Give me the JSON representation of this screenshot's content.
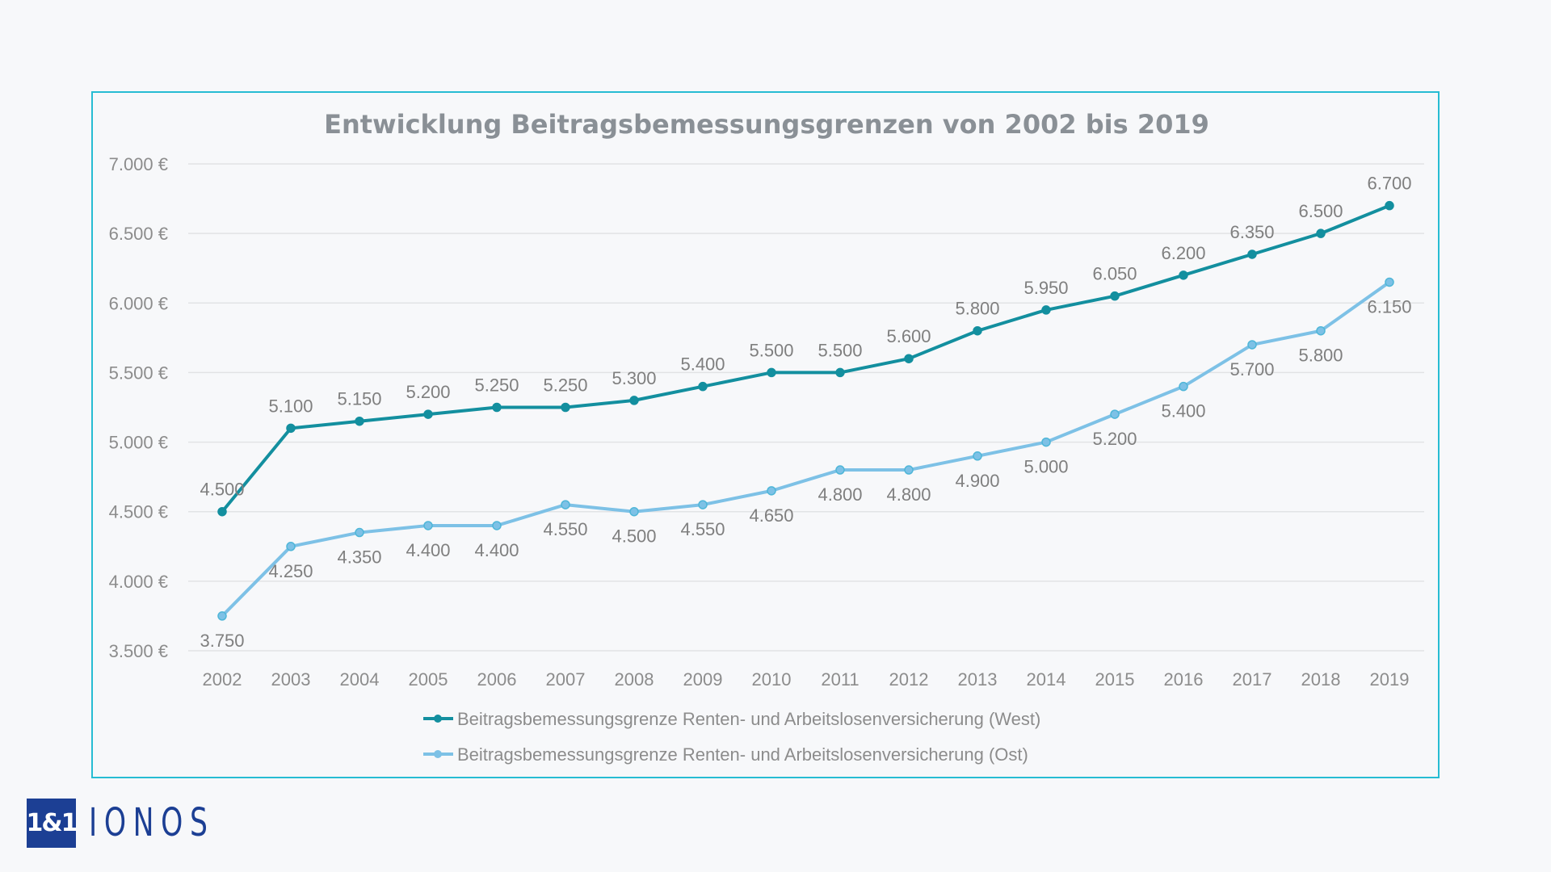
{
  "chart_data": {
    "type": "line",
    "title": "Entwicklung Beitragsbemessungsgrenzen von 2002 bis 2019",
    "x": [
      "2002",
      "2003",
      "2004",
      "2005",
      "2006",
      "2007",
      "2008",
      "2009",
      "2010",
      "2011",
      "2012",
      "2013",
      "2014",
      "2015",
      "2016",
      "2017",
      "2018",
      "2019"
    ],
    "ylim": [
      3500,
      7000
    ],
    "yticks": [
      3500,
      4000,
      4500,
      5000,
      5500,
      6000,
      6500,
      7000
    ],
    "ytick_labels": [
      "3.500 €",
      "4.000 €",
      "4.500 €",
      "5.000 €",
      "5.500 €",
      "6.000 €",
      "6.500 €",
      "7.000 €"
    ],
    "grid": true,
    "legend_placement": "bottom",
    "series": [
      {
        "name": "Beitragsbemessungsgrenze Renten- und Arbeitslosenversicherung (West)",
        "color": "#138f9f",
        "label_position": "above",
        "values": [
          4500,
          5100,
          5150,
          5200,
          5250,
          5250,
          5300,
          5400,
          5500,
          5500,
          5600,
          5800,
          5950,
          6050,
          6200,
          6350,
          6500,
          6700
        ],
        "labels": [
          "4.500",
          "5.100",
          "5.150",
          "5.200",
          "5.250",
          "5.250",
          "5.300",
          "5.400",
          "5.500",
          "5.500",
          "5.600",
          "5.800",
          "5.950",
          "6.050",
          "6.200",
          "6.350",
          "6.500",
          "6.700"
        ]
      },
      {
        "name": "Beitragsbemessungsgrenze Renten- und Arbeitslosenversicherung (Ost)",
        "color": "#7dc1e6",
        "label_position": "below",
        "values": [
          3750,
          4250,
          4350,
          4400,
          4400,
          4550,
          4500,
          4550,
          4650,
          4800,
          4800,
          4900,
          5000,
          5200,
          5400,
          5700,
          5800,
          6150
        ],
        "labels": [
          "3.750",
          "4.250",
          "4.350",
          "4.400",
          "4.400",
          "4.550",
          "4.500",
          "4.550",
          "4.650",
          "4.800",
          "4.800",
          "4.900",
          "5.000",
          "5.200",
          "5.400",
          "5.700",
          "5.800",
          "6.150"
        ]
      }
    ]
  },
  "logo": {
    "mark": "1&1",
    "text": "IONOS",
    "color": "#1c3f94"
  },
  "frame_color": "#27bcd3"
}
